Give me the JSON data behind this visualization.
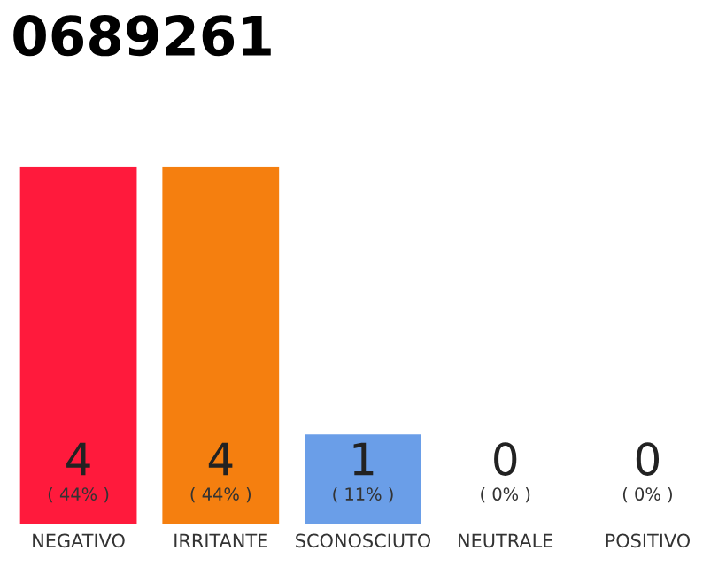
{
  "chart_data": {
    "type": "bar",
    "title": "0689261",
    "categories": [
      "NEGATIVO",
      "IRRITANTE",
      "SCONOSCIUTO",
      "NEUTRALE",
      "POSITIVO"
    ],
    "values": [
      4,
      4,
      1,
      0,
      0
    ],
    "colors": [
      "#ff1a3c",
      "#f57f0f",
      "#6a9ee8",
      "#6a9ee8",
      "#6a9ee8"
    ],
    "ylim": [
      0,
      4
    ],
    "data_labels": true,
    "tick_labels": "x",
    "grid": false,
    "annotations": [
      {
        "text": "( 44% )",
        "x": "NEGATIVO",
        "y": 0
      },
      {
        "text": "( 44% )",
        "x": "IRRITANTE",
        "y": 0
      },
      {
        "text": "( 11% )",
        "x": "SCONOSCIUTO",
        "y": 0
      },
      {
        "text": "( 0% )",
        "x": "NEUTRALE",
        "y": 0
      },
      {
        "text": "( 0% )",
        "x": "POSITIVO",
        "y": 0
      }
    ]
  }
}
